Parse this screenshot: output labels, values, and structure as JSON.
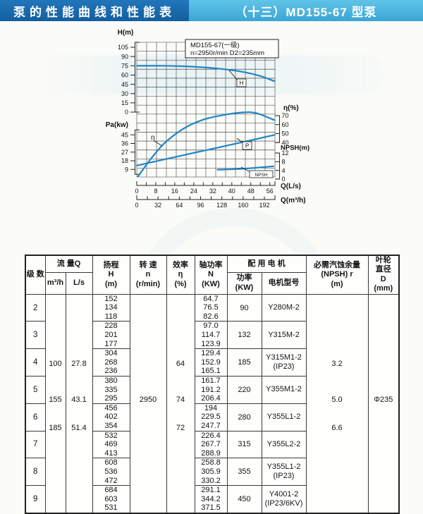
{
  "header": {
    "left_title": "泵的性能曲线和性能表",
    "right_title": "（十三）MD155-67 型泵",
    "left_bg": "#176bb0",
    "right_bg": "#4fb8e2"
  },
  "chart_data": {
    "type": "line",
    "title": "MD155-67(一级)",
    "subtitle": "n=2950r/min  D2=235mm",
    "grid": true,
    "curve_color": "#1e86c6",
    "x_axes": [
      {
        "id": "q_ls",
        "label": "Q(L/s)",
        "ticks": [
          0,
          8,
          16,
          24,
          32,
          40,
          48,
          56
        ]
      },
      {
        "id": "q_m3h",
        "label": "Q(m³/h)",
        "ticks": [
          0,
          32,
          64,
          96,
          128,
          160,
          192
        ]
      }
    ],
    "y_axes": [
      {
        "id": "h",
        "label": "H(m)",
        "ticks": [
          105,
          90,
          75,
          60,
          45,
          30,
          15,
          0
        ]
      },
      {
        "id": "pa",
        "label": "Pa(kw)",
        "ticks": [
          45,
          36,
          27,
          18,
          9
        ]
      },
      {
        "id": "eta",
        "label": "η(%)",
        "ticks": [
          70,
          60,
          50,
          40
        ]
      },
      {
        "id": "npsh",
        "label": "NPSH(m)",
        "ticks": [
          12,
          8,
          4,
          0
        ]
      }
    ],
    "series": [
      {
        "key": "h",
        "name": "H",
        "y_axis": "h",
        "x": [
          0,
          12,
          24,
          34,
          44,
          52,
          58
        ],
        "y": [
          75,
          75,
          73.5,
          70.5,
          65.5,
          58.5,
          50
        ]
      },
      {
        "key": "eta",
        "name": "η",
        "y_axis": "eta",
        "x": [
          0.5,
          6,
          12,
          20,
          28,
          36,
          44,
          50,
          58
        ],
        "y": [
          2,
          22,
          40,
          56,
          65.5,
          70.5,
          73.5,
          73,
          65
        ]
      },
      {
        "key": "p",
        "name": "P",
        "y_axis": "pa",
        "x": [
          0,
          10,
          20,
          30,
          40,
          50,
          58
        ],
        "y": [
          13,
          18.5,
          24,
          29.5,
          35,
          40.5,
          45
        ]
      },
      {
        "key": "npsh",
        "name": "NPSH",
        "y_axis": "npsh",
        "x": [
          34,
          42,
          50,
          57.5
        ],
        "y": [
          4.3,
          4.6,
          5.2,
          5.9
        ]
      }
    ]
  },
  "table": {
    "headers": {
      "stages": "级 数",
      "flow": "流 量Q",
      "flow_m3h": "m³/h",
      "flow_ls": "L/s",
      "head": "扬程\nH\n(m)",
      "speed": "转 速\nn\n(r/min)",
      "efficiency": "效率\nη\n(%)",
      "shaft_power": "轴功率\nN\n(KW)",
      "motor": "配 用 电 机",
      "motor_power": "功率\n(KW)",
      "motor_model": "电机型号",
      "npsh": "必需汽蚀余量\n(NPSH) r\n(m)",
      "impeller": "叶轮\n直径\nD\n(mm)"
    },
    "merged": {
      "flow_m3h": [
        "100",
        "155",
        "185"
      ],
      "flow_ls": [
        "27.8",
        "43.1",
        "51.4"
      ],
      "speed": "2950",
      "efficiency": [
        "64",
        "74",
        "72"
      ],
      "npsh": [
        "3.2",
        "5.0",
        "6.6"
      ],
      "impeller": "Φ235"
    },
    "rows": [
      {
        "stage": "2",
        "head": [
          "152",
          "134",
          "118"
        ],
        "power": [
          "64.7",
          "76.5",
          "82.6"
        ],
        "motor_kw": "90",
        "motor_model": "Y280M-2",
        "motor_note": ""
      },
      {
        "stage": "3",
        "head": [
          "228",
          "201",
          "177"
        ],
        "power": [
          "97.0",
          "114.7",
          "123.9"
        ],
        "motor_kw": "132",
        "motor_model": "Y315M-2",
        "motor_note": ""
      },
      {
        "stage": "4",
        "head": [
          "304",
          "268",
          "236"
        ],
        "power": [
          "129.4",
          "152.9",
          "165.1"
        ],
        "motor_kw": "185",
        "motor_model": "Y315M1-2",
        "motor_note": "(IP23)"
      },
      {
        "stage": "5",
        "head": [
          "380",
          "335",
          "295"
        ],
        "power": [
          "161.7",
          "191.2",
          "206.4"
        ],
        "motor_kw": "220",
        "motor_model": "Y355M1-2",
        "motor_note": ""
      },
      {
        "stage": "6",
        "head": [
          "456",
          "402",
          "354"
        ],
        "power": [
          "194",
          "229.5",
          "247.7"
        ],
        "motor_kw": "280",
        "motor_model": "Y355L1-2",
        "motor_note": ""
      },
      {
        "stage": "7",
        "head": [
          "532",
          "469",
          "413"
        ],
        "power": [
          "226.4",
          "267.7",
          "288.9"
        ],
        "motor_kw": "315",
        "motor_model": "Y355L2-2",
        "motor_note": ""
      },
      {
        "stage": "8",
        "head": [
          "608",
          "536",
          "472"
        ],
        "power": [
          "258.8",
          "305.9",
          "330.2"
        ],
        "motor_kw": "355",
        "motor_model": "Y355L1-2",
        "motor_note": "(IP23)"
      },
      {
        "stage": "9",
        "head": [
          "684",
          "603",
          "531"
        ],
        "power": [
          "291.1",
          "344.2",
          "371.5"
        ],
        "motor_kw": "450",
        "motor_model": "Y4001-2",
        "motor_note": "(IP23/6KV)"
      }
    ]
  }
}
